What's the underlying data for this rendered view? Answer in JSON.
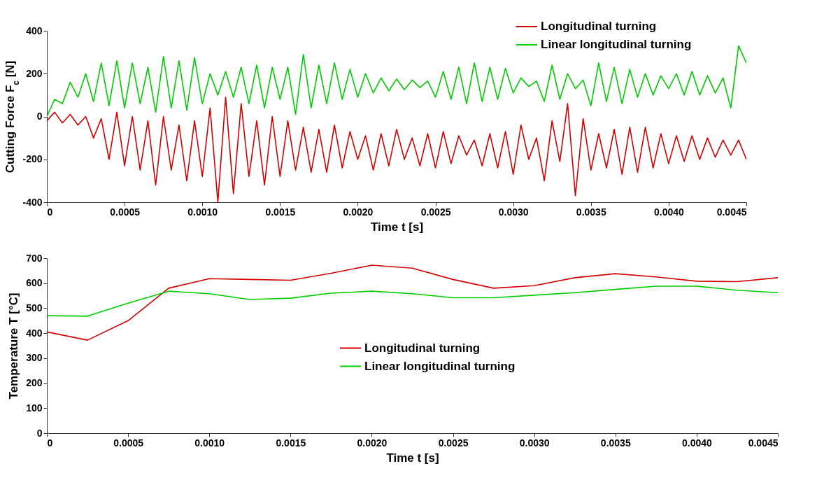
{
  "chart_data": [
    {
      "type": "line",
      "xlabel": "Time t [s]",
      "ylabel": "Cutting Force F$_{c}$ [N]",
      "x": [
        0,
        5e-05,
        0.0001,
        0.00015,
        0.0002,
        0.00025,
        0.0003,
        0.00035,
        0.0004,
        0.00045,
        0.0005,
        0.00055,
        0.0006,
        0.00065,
        0.0007,
        0.00075,
        0.0008,
        0.00085,
        0.0009,
        0.00095,
        0.001,
        0.00105,
        0.0011,
        0.00115,
        0.0012,
        0.00125,
        0.0013,
        0.00135,
        0.0014,
        0.00145,
        0.0015,
        0.00155,
        0.0016,
        0.00165,
        0.0017,
        0.00175,
        0.0018,
        0.00185,
        0.0019,
        0.00195,
        0.002,
        0.00205,
        0.0021,
        0.00215,
        0.0022,
        0.00225,
        0.0023,
        0.00235,
        0.0024,
        0.00245,
        0.0025,
        0.00255,
        0.0026,
        0.00265,
        0.0027,
        0.00275,
        0.0028,
        0.00285,
        0.0029,
        0.00295,
        0.003,
        0.00305,
        0.0031,
        0.00315,
        0.0032,
        0.00325,
        0.0033,
        0.00335,
        0.0034,
        0.00345,
        0.0035,
        0.00355,
        0.0036,
        0.00365,
        0.0037,
        0.00375,
        0.0038,
        0.00385,
        0.0039,
        0.00395,
        0.004,
        0.00405,
        0.0041,
        0.00415,
        0.0042,
        0.00425,
        0.0043,
        0.00435,
        0.0044,
        0.00445,
        0.0045
      ],
      "series": [
        {
          "name": "Longitudinal turning",
          "color": "#d40000",
          "values": [
            -20,
            20,
            -30,
            10,
            -40,
            0,
            -100,
            -10,
            -200,
            20,
            -230,
            0,
            -250,
            -20,
            -320,
            0,
            -250,
            -40,
            -300,
            -20,
            -280,
            40,
            -400,
            90,
            -360,
            60,
            -280,
            -20,
            -320,
            0,
            -280,
            -20,
            -250,
            -50,
            -260,
            -60,
            -260,
            -40,
            -240,
            -70,
            -200,
            -90,
            -250,
            -80,
            -230,
            -60,
            -200,
            -100,
            -230,
            -80,
            -240,
            -70,
            -220,
            -90,
            -180,
            -110,
            -230,
            -80,
            -240,
            -70,
            -270,
            -40,
            -200,
            -100,
            -300,
            -20,
            -210,
            60,
            -370,
            -10,
            -250,
            -80,
            -240,
            -60,
            -270,
            -50,
            -260,
            -50,
            -240,
            -80,
            -220,
            -90,
            -210,
            -90,
            -200,
            -100,
            -190,
            -110,
            -180,
            -110,
            -200
          ]
        },
        {
          "name": "Linear longitudinal  turning",
          "color": "#00cc00",
          "values": [
            0,
            80,
            60,
            160,
            90,
            200,
            70,
            250,
            50,
            260,
            40,
            250,
            60,
            230,
            20,
            280,
            40,
            260,
            30,
            275,
            60,
            200,
            100,
            210,
            90,
            230,
            60,
            240,
            40,
            230,
            80,
            230,
            10,
            290,
            40,
            240,
            60,
            250,
            80,
            220,
            90,
            200,
            110,
            180,
            120,
            175,
            125,
            170,
            135,
            165,
            90,
            210,
            80,
            230,
            60,
            250,
            70,
            230,
            80,
            225,
            110,
            180,
            140,
            165,
            70,
            240,
            80,
            200,
            130,
            170,
            50,
            250,
            70,
            230,
            60,
            220,
            90,
            200,
            100,
            190,
            130,
            200,
            100,
            210,
            100,
            190,
            110,
            180,
            40,
            330,
            250
          ]
        }
      ],
      "xlim": [
        0,
        0.0045
      ],
      "xticks": [
        0,
        0.0005,
        {
          "value": 0.001,
          "label": "0.0010"
        },
        0.0015,
        {
          "value": 0.002,
          "label": "0.0020"
        },
        0.0025,
        {
          "value": 0.003,
          "label": "0.0030"
        },
        0.0035,
        {
          "value": 0.004,
          "label": "0.0040"
        },
        0.0045
      ],
      "ylim": [
        -400,
        400
      ],
      "yticks": [
        -400,
        -200,
        0,
        200,
        400
      ],
      "legend": "top right"
    },
    {
      "type": "line",
      "xlabel": "Time t [s]",
      "ylabel": "Temperature T [°C]",
      "x": [
        0,
        0.00025,
        0.0005,
        0.00075,
        0.001,
        0.00125,
        0.0015,
        0.00175,
        0.002,
        0.00225,
        0.0025,
        0.00275,
        0.003,
        0.00325,
        0.0035,
        0.00375,
        0.004,
        0.00425,
        0.0045
      ],
      "series": [
        {
          "name": "Longitudinal turning",
          "color": "#d40000",
          "values": [
            405,
            372,
            450,
            580,
            618,
            615,
            612,
            640,
            672,
            660,
            615,
            580,
            590,
            622,
            638,
            625,
            608,
            606,
            622
          ]
        },
        {
          "name": "Linear longitudinal  turning",
          "color": "#00cc00",
          "values": [
            470,
            468,
            520,
            568,
            558,
            535,
            540,
            560,
            568,
            558,
            542,
            542,
            552,
            562,
            575,
            588,
            588,
            572,
            562
          ]
        }
      ],
      "xlim": [
        0,
        0.0045
      ],
      "xticks": [
        0,
        0.0005,
        {
          "value": 0.001,
          "label": "0.0010"
        },
        0.0015,
        {
          "value": 0.002,
          "label": "0.0020"
        },
        0.0025,
        {
          "value": 0.003,
          "label": "0.0030"
        },
        0.0035,
        {
          "value": 0.004,
          "label": "0.0040"
        },
        0.0045
      ],
      "ylim": [
        0,
        700
      ],
      "yticks": [
        0,
        100,
        200,
        300,
        400,
        500,
        600,
        700
      ],
      "legend": "center"
    }
  ]
}
